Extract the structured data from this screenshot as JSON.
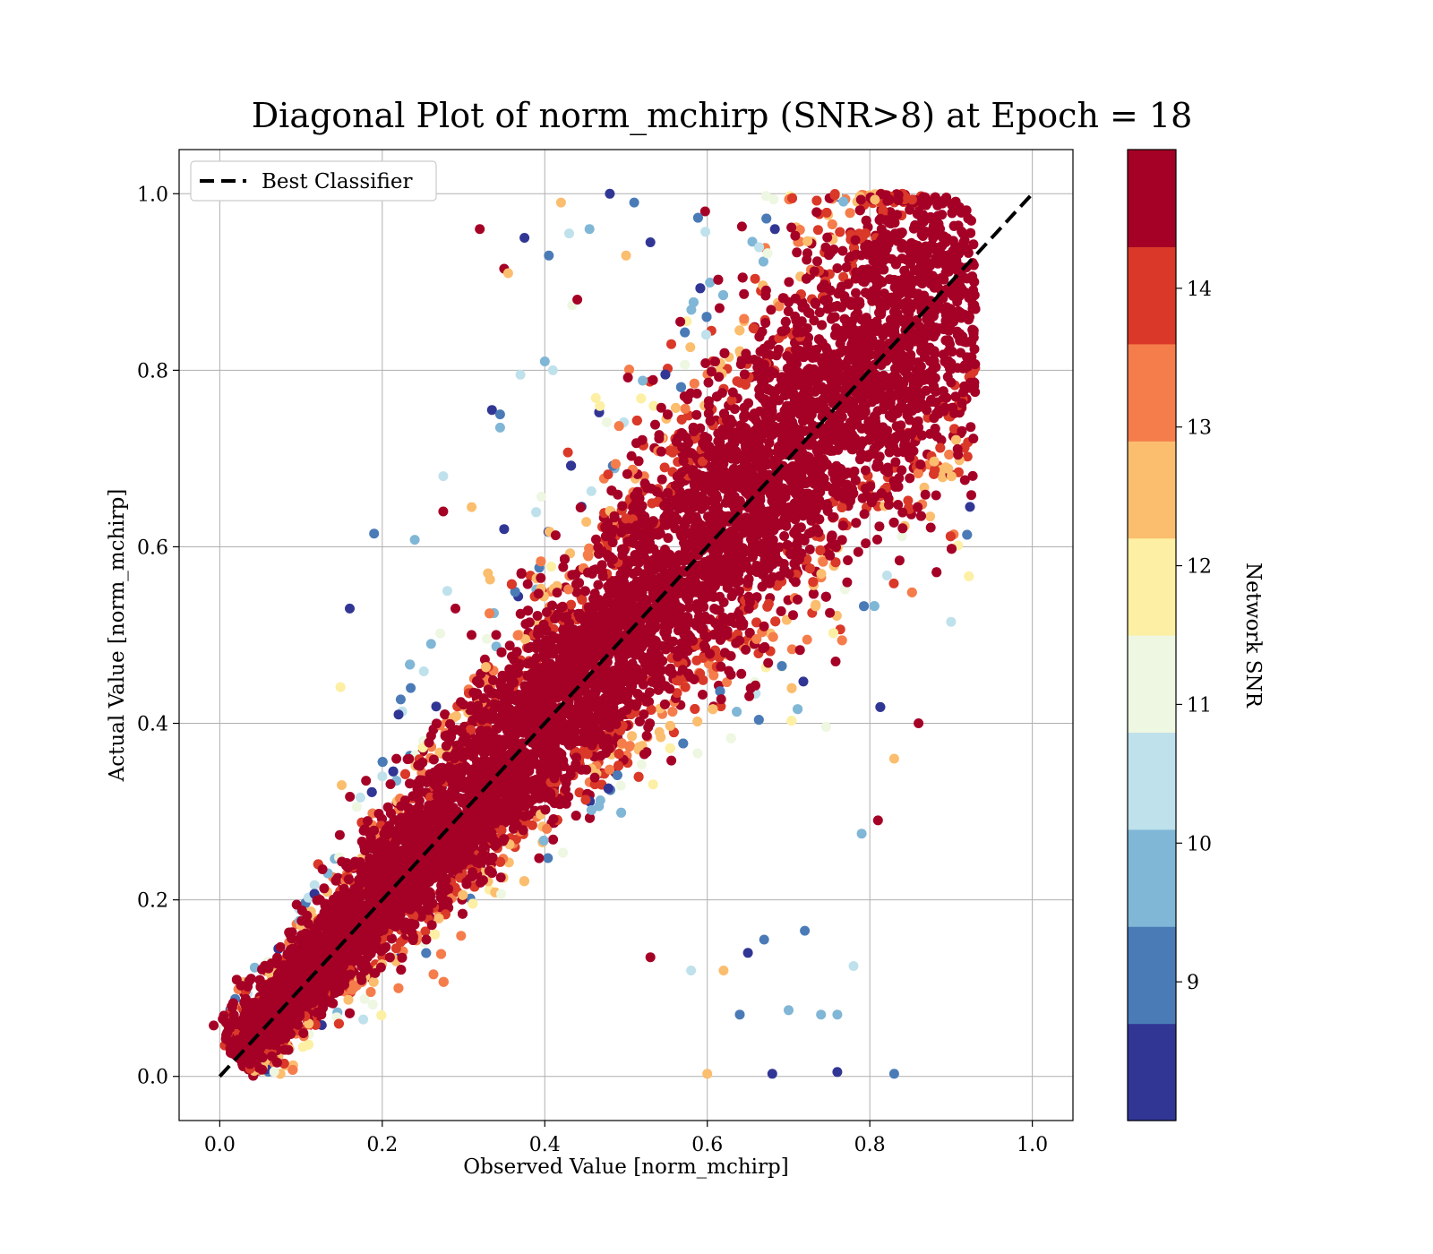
{
  "chart_data": {
    "type": "scatter",
    "title": "Diagonal Plot of norm_mchirp (SNR>8) at Epoch = 18",
    "xlabel": "Observed Value [norm_mchirp]",
    "ylabel": "Actual Value [norm_mchirp]",
    "xlim": [
      -0.05,
      1.05
    ],
    "ylim": [
      -0.05,
      1.05
    ],
    "grid": true,
    "legend_position": "top-left",
    "x_ticks": [
      "0.0",
      "0.2",
      "0.4",
      "0.6",
      "0.8",
      "1.0"
    ],
    "y_ticks": [
      "0.0",
      "0.2",
      "0.4",
      "0.6",
      "0.8",
      "1.0"
    ],
    "reference_line": {
      "label": "Best Classifier",
      "style": "dashed",
      "color": "#000000",
      "x": [
        0.0,
        1.0
      ],
      "y": [
        0.0,
        1.0
      ]
    },
    "colorbar": {
      "label": "Network SNR",
      "range": [
        8,
        15
      ],
      "ticks": [
        "9",
        "10",
        "11",
        "12",
        "13",
        "14"
      ],
      "colormap": "RdYlBu_r",
      "bins": [
        "#313695",
        "#4575b4",
        "#74add1",
        "#abd9e9",
        "#e0f3f8",
        "#ffffbf",
        "#fee090",
        "#fdae61",
        "#f46d43",
        "#d73027",
        "#a50026"
      ],
      "discrete_colors": [
        "#313695",
        "#4a7bb7",
        "#80b6d6",
        "#bfe1ec",
        "#eef7e1",
        "#fdefa3",
        "#fbbd6e",
        "#f57d4b",
        "#da3828",
        "#a50026"
      ]
    },
    "series": [
      {
        "points": [
          [
            0.16,
            0.53
          ],
          [
            0.19,
            0.615
          ],
          [
            0.24,
            0.608
          ],
          [
            0.275,
            0.68
          ],
          [
            0.275,
            0.64
          ],
          [
            0.31,
            0.645
          ],
          [
            0.335,
            0.755
          ],
          [
            0.345,
            0.75
          ],
          [
            0.345,
            0.735
          ],
          [
            0.37,
            0.795
          ],
          [
            0.35,
            0.915
          ],
          [
            0.355,
            0.91
          ],
          [
            0.375,
            0.95
          ],
          [
            0.405,
            0.93
          ],
          [
            0.4,
            0.81
          ],
          [
            0.41,
            0.8
          ],
          [
            0.32,
            0.96
          ],
          [
            0.42,
            0.99
          ],
          [
            0.48,
            1.0
          ],
          [
            0.51,
            0.99
          ],
          [
            0.455,
            0.96
          ],
          [
            0.43,
            0.955
          ],
          [
            0.44,
            0.88
          ],
          [
            0.5,
            0.93
          ],
          [
            0.53,
            0.945
          ],
          [
            0.72,
            0.165
          ],
          [
            0.76,
            0.07
          ],
          [
            0.78,
            0.125
          ],
          [
            0.81,
            0.29
          ],
          [
            0.83,
            0.36
          ],
          [
            0.76,
            0.005
          ],
          [
            0.83,
            0.003
          ],
          [
            0.79,
            0.275
          ],
          [
            0.9,
            0.515
          ],
          [
            0.86,
            0.4
          ],
          [
            0.6,
            0.003
          ],
          [
            0.68,
            0.003
          ],
          [
            0.64,
            0.07
          ],
          [
            0.7,
            0.075
          ],
          [
            0.58,
            0.12
          ],
          [
            0.53,
            0.135
          ],
          [
            0.62,
            0.12
          ],
          [
            0.65,
            0.14
          ],
          [
            0.67,
            0.155
          ],
          [
            0.74,
            0.07
          ],
          [
            0.2,
            0.34
          ],
          [
            0.18,
            0.335
          ],
          [
            0.15,
            0.33
          ],
          [
            0.22,
            0.41
          ],
          [
            0.235,
            0.44
          ],
          [
            0.26,
            0.49
          ],
          [
            0.28,
            0.55
          ],
          [
            0.29,
            0.53
          ],
          [
            0.33,
            0.57
          ],
          [
            0.35,
            0.62
          ]
        ]
      }
    ]
  },
  "legend": {
    "label": "Best Classifier"
  }
}
